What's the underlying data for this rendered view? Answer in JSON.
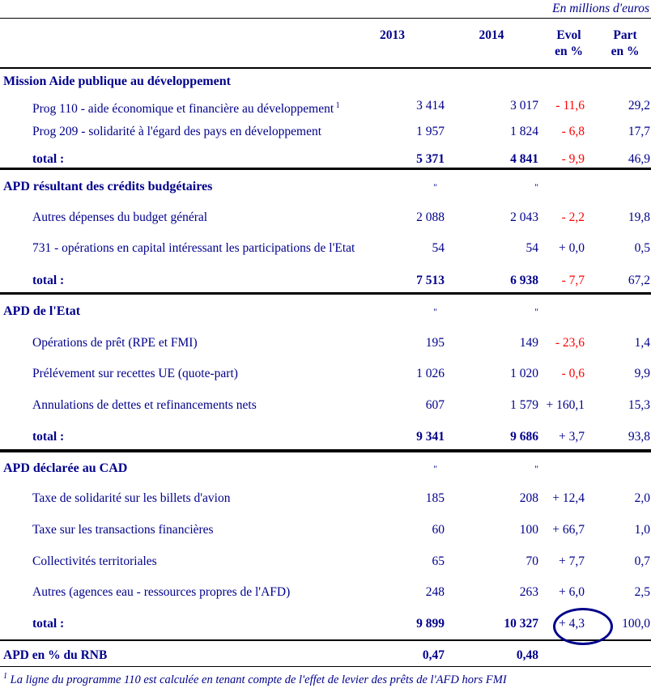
{
  "note": "En millions d'euros",
  "columns": {
    "c2013": "2013",
    "c2014": "2014",
    "evol_line1": "Evol",
    "evol_line2": "en %",
    "part_line1": "Part",
    "part_line2": "en %"
  },
  "ditto_mark": "\"",
  "colors": {
    "text_navy": "#00008B",
    "negative_red": "#FF0000",
    "rule_black": "#000000"
  },
  "sections": [
    {
      "title": "Mission Aide publique au développement",
      "ditto": false,
      "rows": [
        {
          "label": "Prog 110 - aide économique et financière au développement",
          "sup": "1",
          "v2013": "3 414",
          "v2014": "3 017",
          "evol": "- 11,6",
          "part": "29,2"
        },
        {
          "label": "Prog 209 - solidarité à l'égard des pays en développement",
          "v2013": "1 957",
          "v2014": "1 824",
          "evol": "- 6,8",
          "part": "17,7"
        }
      ],
      "total": {
        "label": "total :",
        "v2013": "5 371",
        "v2014": "4 841",
        "evol": "- 9,9",
        "part": "46,9"
      }
    },
    {
      "title": "APD résultant des crédits budgétaires",
      "ditto": true,
      "rows": [
        {
          "label": "Autres dépenses du budget général",
          "v2013": "2 088",
          "v2014": "2 043",
          "evol": "- 2,2",
          "part": "19,8"
        },
        {
          "label": "731 - opérations en capital intéressant les participations de l'Etat",
          "v2013": "54",
          "v2014": "54",
          "evol": "+ 0,0",
          "part": "0,5"
        }
      ],
      "total": {
        "label": "total :",
        "v2013": "7 513",
        "v2014": "6 938",
        "evol": "- 7,7",
        "part": "67,2"
      }
    },
    {
      "title": "APD de l'Etat",
      "ditto": true,
      "rows": [
        {
          "label": "Opérations de prêt (RPE et FMI)",
          "v2013": "195",
          "v2014": "149",
          "evol": "- 23,6",
          "part": "1,4"
        },
        {
          "label": "Prélévement sur recettes UE (quote-part)",
          "v2013": "1 026",
          "v2014": "1 020",
          "evol": "- 0,6",
          "part": "9,9"
        },
        {
          "label": "Annulations de dettes et refinancements nets",
          "v2013": "607",
          "v2014": "1 579",
          "evol": "+ 160,1",
          "part": "15,3"
        }
      ],
      "total": {
        "label": "total :",
        "v2013": "9 341",
        "v2014": "9 686",
        "evol": "+ 3,7",
        "part": "93,8"
      }
    },
    {
      "title": "APD déclarée au CAD",
      "ditto": true,
      "rows": [
        {
          "label": "Taxe de solidarité sur les billets d'avion",
          "v2013": "185",
          "v2014": "208",
          "evol": "+ 12,4",
          "part": "2,0"
        },
        {
          "label": "Taxe sur les transactions financières",
          "v2013": "60",
          "v2014": "100",
          "evol": "+ 66,7",
          "part": "1,0"
        },
        {
          "label": "Collectivités territoriales",
          "v2013": "65",
          "v2014": "70",
          "evol": "+ 7,7",
          "part": "0,7"
        },
        {
          "label": "Autres (agences eau - ressources propres de l'AFD)",
          "v2013": "248",
          "v2014": "263",
          "evol": "+ 6,0",
          "part": "2,5"
        }
      ],
      "total": {
        "label": "total :",
        "v2013": "9 899",
        "v2014": "10 327",
        "evol": "+ 4,3",
        "part": "100,0",
        "evol_circled": true
      }
    }
  ],
  "footer_row": {
    "label": "APD en % du RNB",
    "v2013": "0,47",
    "v2014": "0,48"
  },
  "footnote": {
    "sup": "1",
    "text": "La ligne du programme 110 est calculée en tenant compte de l'effet de levier des prêts de l'AFD hors FMI"
  }
}
